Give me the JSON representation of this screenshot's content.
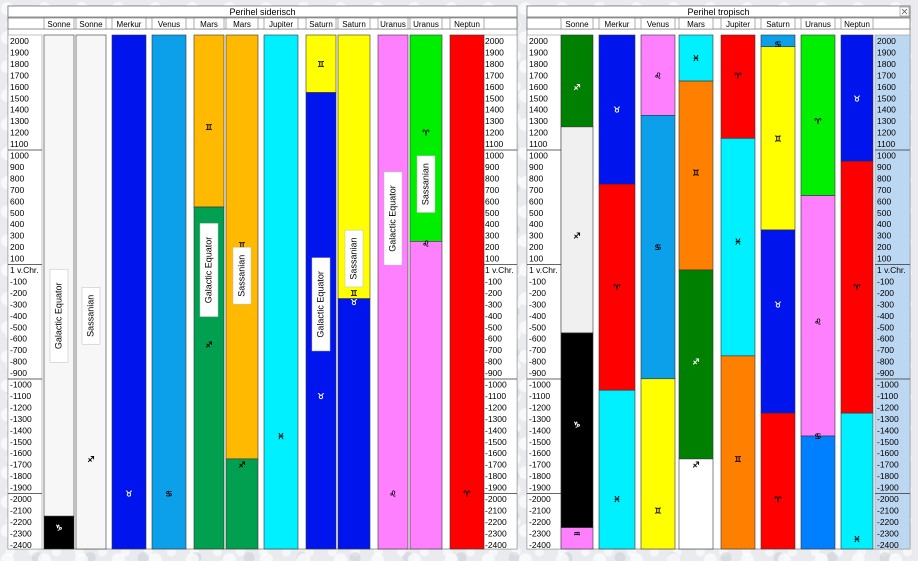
{
  "chart_data": [
    {
      "type": "table",
      "title": "Perihel siderisch",
      "y_ticks": [
        "2000",
        "1900",
        "1800",
        "1700",
        "1600",
        "1500",
        "1400",
        "1300",
        "1200",
        "1100",
        "1000",
        "900",
        "800",
        "700",
        "600",
        "500",
        "400",
        "300",
        "200",
        "100",
        "1 v.Chr.",
        "-100",
        "-200",
        "-300",
        "-400",
        "-500",
        "-600",
        "-700",
        "-800",
        "-900",
        "-1000",
        "-1100",
        "-1200",
        "-1300",
        "-1400",
        "-1500",
        "-1600",
        "-1700",
        "-1800",
        "-1900",
        "-2000",
        "-2100",
        "-2200",
        "-2300",
        "-2400"
      ],
      "ylim": [
        -2400,
        2000
      ],
      "columns": [
        {
          "header": "Sonne",
          "segments": [
            {
              "from": 2000,
              "to": -2150,
              "color": "#f7f7f7",
              "glyph": "♐︎",
              "glyph_at": -100
            },
            {
              "from": -2150,
              "to": -2430,
              "color": "#000000",
              "glyph": "♑︎",
              "glyph_at": -2250
            }
          ],
          "label": "Galactic Equator",
          "label_at": -400
        },
        {
          "header": "Sonne",
          "segments": [
            {
              "from": 2000,
              "to": -2430,
              "color": "#f7f7f7",
              "glyph": "♐︎",
              "glyph_at": -1650
            }
          ],
          "label": "Sassanian",
          "label_at": -400
        },
        {
          "header": "Merkur",
          "segments": [
            {
              "from": 2000,
              "to": -2430,
              "color": "#0015ee",
              "glyph": "♉︎",
              "glyph_at": -1950
            }
          ]
        },
        {
          "header": "Venus",
          "segments": [
            {
              "from": 2000,
              "to": -2430,
              "color": "#0da0ea",
              "glyph": "♋︎",
              "glyph_at": -1950
            }
          ]
        },
        {
          "header": "Mars",
          "segments": [
            {
              "from": 2000,
              "to": 550,
              "color": "#ffba00",
              "glyph": "♊︎",
              "glyph_at": 1250
            },
            {
              "from": 550,
              "to": -2430,
              "color": "#00a050",
              "glyph": "♐︎",
              "glyph_at": -650
            }
          ],
          "label": "Galactic Equator",
          "label_at": 0
        },
        {
          "header": "Mars",
          "segments": [
            {
              "from": 2000,
              "to": -1650,
              "color": "#ffba00",
              "glyph": "♊︎",
              "glyph_at": 220
            },
            {
              "from": -1650,
              "to": -2430,
              "color": "#00a050",
              "glyph": "♐︎",
              "glyph_at": -1700
            }
          ],
          "label": "Sassanian",
          "label_at": -50
        },
        {
          "header": "Jupiter",
          "segments": [
            {
              "from": 2000,
              "to": -2430,
              "color": "#00f0ff",
              "glyph": "♓︎",
              "glyph_at": -1450
            }
          ]
        },
        {
          "header": "Saturn",
          "segments": [
            {
              "from": 2000,
              "to": 1550,
              "color": "#ffff00",
              "glyph": "♊︎",
              "glyph_at": 1800
            },
            {
              "from": 1550,
              "to": -2430,
              "color": "#0015ee",
              "glyph": "♉︎",
              "glyph_at": -1100
            }
          ],
          "label": "Galactic Equator",
          "label_at": -300
        },
        {
          "header": "Saturn",
          "segments": [
            {
              "from": 2000,
              "to": -250,
              "color": "#ffff00",
              "glyph": "♊︎",
              "glyph_at": -200
            },
            {
              "from": -250,
              "to": -2430,
              "color": "#0015ee",
              "glyph": "♉︎",
              "glyph_at": -280
            }
          ],
          "label": "Sassanian",
          "label_at": 100
        },
        {
          "header": "Uranus",
          "segments": [
            {
              "from": 2000,
              "to": -2430,
              "color": "#ff80ff",
              "glyph": "♌︎",
              "glyph_at": -1950
            }
          ],
          "label": "Galactic Equator",
          "label_at": 450
        },
        {
          "header": "Uranus",
          "segments": [
            {
              "from": 2000,
              "to": 250,
              "color": "#00ee00",
              "glyph": "♈︎",
              "glyph_at": 1200
            },
            {
              "from": 250,
              "to": -2430,
              "color": "#ff80ff",
              "glyph": "♌︎",
              "glyph_at": 230
            }
          ],
          "label": "Sassanian",
          "label_at": 750
        },
        {
          "header": "Neptun",
          "segments": [
            {
              "from": 2000,
              "to": -2430,
              "color": "#ff0000",
              "glyph": "♈︎",
              "glyph_at": -1950
            }
          ]
        }
      ]
    },
    {
      "type": "table",
      "title": "Perihel tropisch",
      "y_ticks": [
        "2000",
        "1900",
        "1800",
        "1700",
        "1600",
        "1500",
        "1400",
        "1300",
        "1200",
        "1100",
        "1000",
        "900",
        "800",
        "700",
        "600",
        "500",
        "400",
        "300",
        "200",
        "100",
        "1 v.Chr.",
        "-100",
        "-200",
        "-300",
        "-400",
        "-500",
        "-600",
        "-700",
        "-800",
        "-900",
        "-1000",
        "-1100",
        "-1200",
        "-1300",
        "-1400",
        "-1500",
        "-1600",
        "-1700",
        "-1800",
        "-1900",
        "-2000",
        "-2100",
        "-2200",
        "-2300",
        "-2400"
      ],
      "ylim": [
        -2400,
        2000
      ],
      "columns": [
        {
          "header": "Sonne",
          "segments": [
            {
              "from": 2000,
              "to": 1250,
              "color": "#008000",
              "glyph": "♐︎",
              "glyph_at": 1600
            },
            {
              "from": 1250,
              "to": -550,
              "color": "#f0f0f0",
              "glyph": "♐︎",
              "glyph_at": 300
            },
            {
              "from": -550,
              "to": -2250,
              "color": "#000000",
              "glyph": "♑︎",
              "glyph_at": -1350
            },
            {
              "from": -2250,
              "to": -2430,
              "color": "#ff80ff",
              "glyph": "♒︎",
              "glyph_at": -2300
            }
          ]
        },
        {
          "header": "Merkur",
          "segments": [
            {
              "from": 2000,
              "to": 750,
              "color": "#0015ee",
              "glyph": "♉︎",
              "glyph_at": 1400
            },
            {
              "from": 750,
              "to": -1050,
              "color": "#ff0000",
              "glyph": "♈︎",
              "glyph_at": -150
            },
            {
              "from": -1050,
              "to": -2430,
              "color": "#00f0ff",
              "glyph": "♓︎",
              "glyph_at": -2000
            }
          ]
        },
        {
          "header": "Venus",
          "segments": [
            {
              "from": 2000,
              "to": 1350,
              "color": "#ff80ff",
              "glyph": "♌︎",
              "glyph_at": 1700
            },
            {
              "from": 1350,
              "to": -950,
              "color": "#0da0ea",
              "glyph": "♋︎",
              "glyph_at": 200
            },
            {
              "from": -950,
              "to": -2430,
              "color": "#ffff00",
              "glyph": "♊︎",
              "glyph_at": -2100
            }
          ]
        },
        {
          "header": "Mars",
          "segments": [
            {
              "from": 2000,
              "to": 1650,
              "color": "#00f0ff",
              "glyph": "♓︎",
              "glyph_at": 1850
            },
            {
              "from": 1650,
              "to": 0,
              "color": "#ff7f00",
              "glyph": "♊︎",
              "glyph_at": 850
            },
            {
              "from": 0,
              "to": -1650,
              "color": "#008000",
              "glyph": "♐︎",
              "glyph_at": -800
            },
            {
              "from": -1650,
              "to": -2430,
              "color": "#ffffff",
              "glyph": "♐︎",
              "glyph_at": -1700
            }
          ]
        },
        {
          "header": "Jupiter",
          "segments": [
            {
              "from": 2000,
              "to": 1150,
              "color": "#ff0000",
              "glyph": "♈︎",
              "glyph_at": 1700
            },
            {
              "from": 1150,
              "to": -750,
              "color": "#00f0ff",
              "glyph": "♓︎",
              "glyph_at": 250
            },
            {
              "from": -750,
              "to": -2430,
              "color": "#ff7f00",
              "glyph": "♊︎",
              "glyph_at": -1650
            }
          ]
        },
        {
          "header": "Saturn",
          "segments": [
            {
              "from": 2000,
              "to": 1950,
              "color": "#0da0ea",
              "glyph": "♋︎",
              "glyph_at": 1975
            },
            {
              "from": 1950,
              "to": 350,
              "color": "#ffff00",
              "glyph": "♊︎",
              "glyph_at": 1150
            },
            {
              "from": 350,
              "to": -1250,
              "color": "#0015ee",
              "glyph": "♉︎",
              "glyph_at": -300
            },
            {
              "from": -1250,
              "to": -2430,
              "color": "#ff0000",
              "glyph": "♈︎",
              "glyph_at": -2000
            }
          ]
        },
        {
          "header": "Uranus",
          "segments": [
            {
              "from": 2000,
              "to": 650,
              "color": "#00ee00",
              "glyph": "♈︎",
              "glyph_at": 1300
            },
            {
              "from": 650,
              "to": -1450,
              "color": "#ff80ff",
              "glyph": "♌︎",
              "glyph_at": -450
            },
            {
              "from": -1450,
              "to": -2430,
              "color": "#0080ff",
              "glyph": "♋︎",
              "glyph_at": -1450
            }
          ]
        },
        {
          "header": "Neptun",
          "segments": [
            {
              "from": 2000,
              "to": 950,
              "color": "#0015ee",
              "glyph": "♉︎",
              "glyph_at": 1500
            },
            {
              "from": 950,
              "to": -1250,
              "color": "#ff0000",
              "glyph": "♈︎",
              "glyph_at": -150
            },
            {
              "from": -1250,
              "to": -2430,
              "color": "#00f0ff",
              "glyph": "♓︎",
              "glyph_at": -2350
            }
          ]
        }
      ]
    }
  ]
}
